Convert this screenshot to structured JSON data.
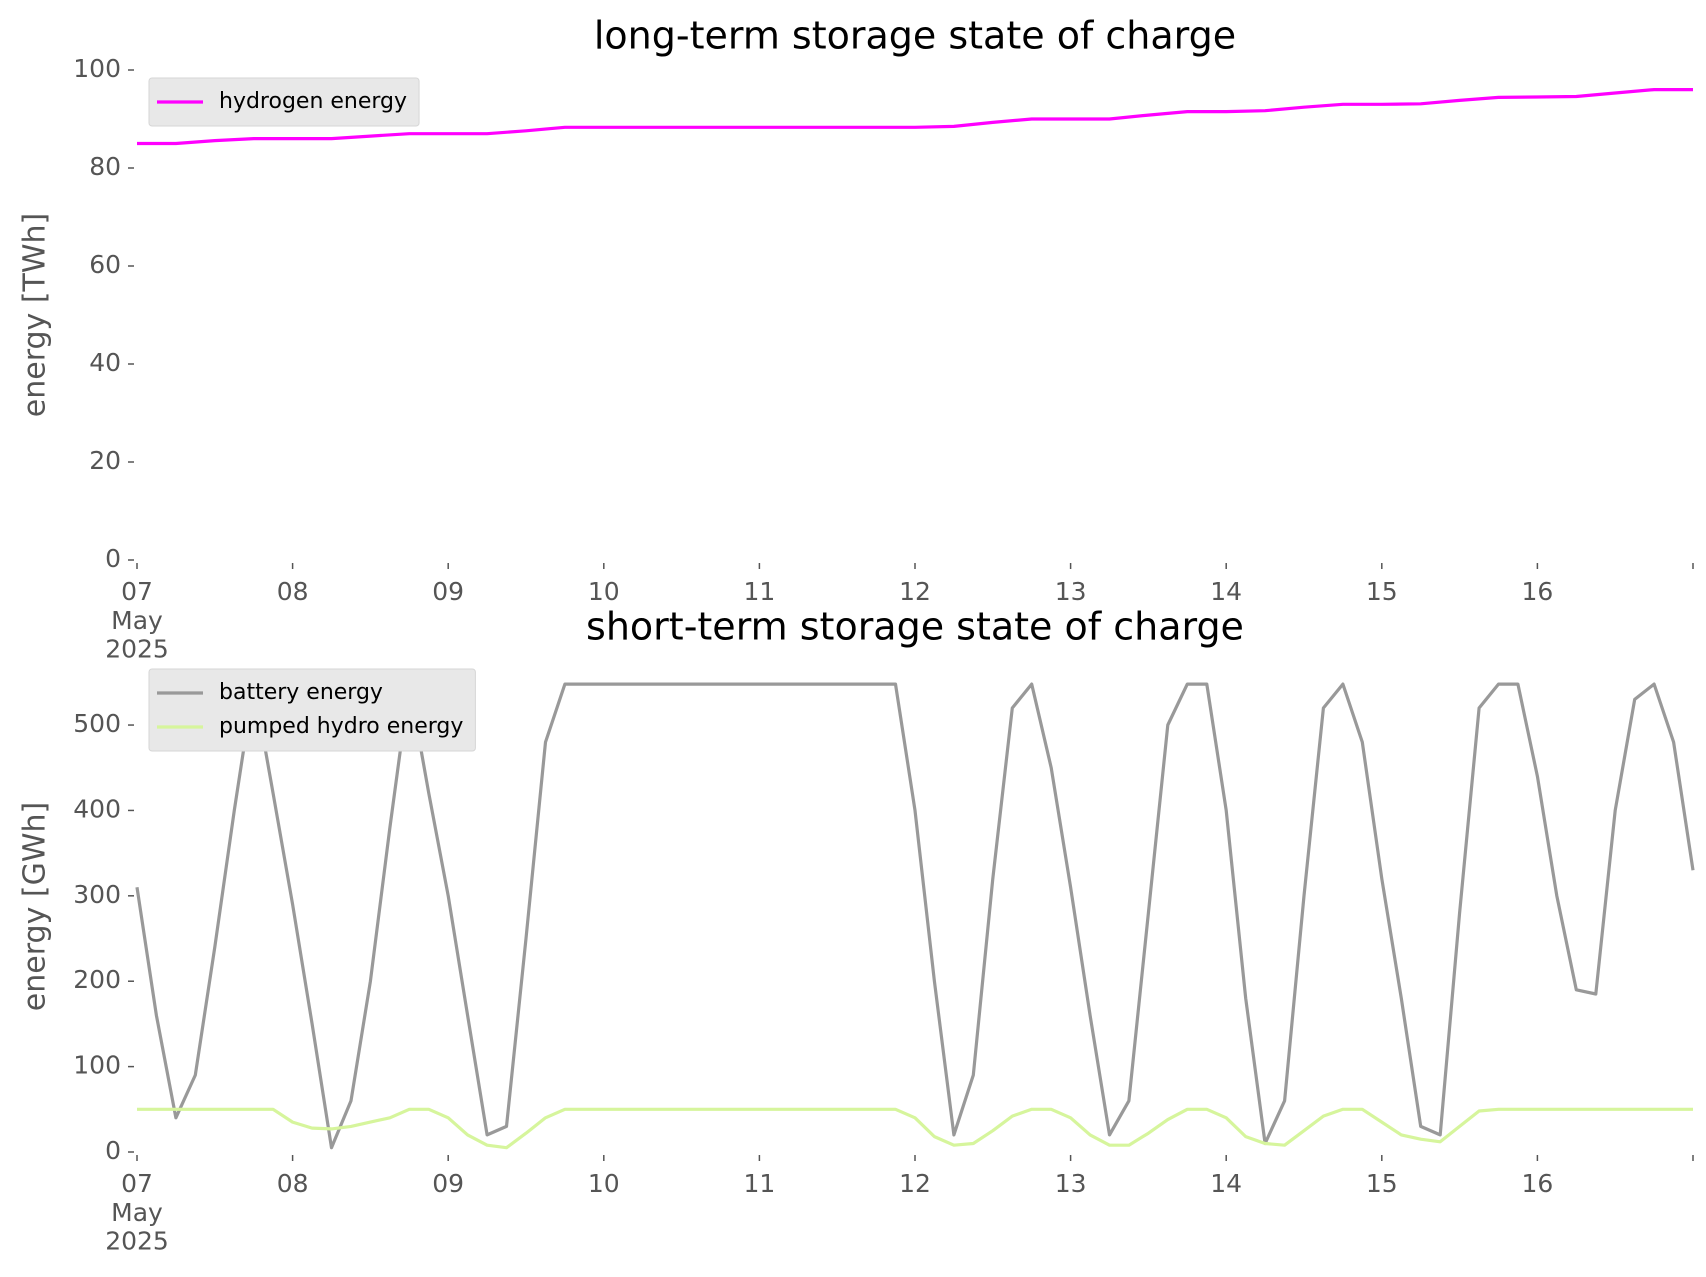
{
  "chart_data": [
    {
      "type": "line",
      "title": "long-term storage state of charge",
      "ylabel": "energy [TWh]",
      "x": [
        7,
        7.25,
        7.5,
        7.75,
        8,
        8.25,
        8.5,
        8.75,
        9,
        9.25,
        9.5,
        9.75,
        10,
        10.25,
        10.5,
        10.75,
        11,
        11.25,
        11.5,
        11.75,
        12,
        12.25,
        12.5,
        12.75,
        13,
        13.25,
        13.5,
        13.75,
        14,
        14.25,
        14.5,
        14.75,
        15,
        15.25,
        15.5,
        15.75,
        16,
        16.25,
        16.5,
        16.75,
        17
      ],
      "series": [
        {
          "name": "hydrogen energy",
          "color": "#ff00ff",
          "values": [
            85,
            85,
            85.6,
            86,
            86,
            86,
            86.5,
            87,
            87,
            87,
            87.6,
            88.3,
            88.3,
            88.3,
            88.3,
            88.3,
            88.3,
            88.3,
            88.3,
            88.3,
            88.3,
            88.5,
            89.3,
            90,
            90,
            90,
            90.8,
            91.5,
            91.5,
            91.7,
            92.4,
            93,
            93,
            93.1,
            93.8,
            94.4,
            94.5,
            94.6,
            95.3,
            96,
            96
          ]
        }
      ],
      "xlim": [
        7,
        17
      ],
      "xticks": [
        {
          "value": 7,
          "label": "07\nMay\n2025"
        },
        {
          "value": 8,
          "label": "08"
        },
        {
          "value": 9,
          "label": "09"
        },
        10,
        11,
        12,
        13,
        14,
        15,
        16,
        {
          "value": 17,
          "label": null
        }
      ],
      "ylim": [
        0,
        100
      ],
      "yticks": [
        0,
        20,
        40,
        60,
        80,
        100
      ],
      "grid": false,
      "legend": "upper left"
    },
    {
      "type": "line",
      "title": "short-term storage state of charge",
      "ylabel": "energy [GWh]",
      "x": [
        7,
        7.125,
        7.25,
        7.375,
        7.5,
        7.625,
        7.75,
        7.875,
        8,
        8.125,
        8.25,
        8.375,
        8.5,
        8.625,
        8.75,
        8.875,
        9,
        9.125,
        9.25,
        9.375,
        9.5,
        9.625,
        9.75,
        9.875,
        10,
        10.125,
        10.25,
        10.375,
        10.5,
        10.625,
        10.75,
        10.875,
        11,
        11.125,
        11.25,
        11.375,
        11.5,
        11.625,
        11.75,
        11.875,
        12,
        12.125,
        12.25,
        12.375,
        12.5,
        12.625,
        12.75,
        12.875,
        13,
        13.125,
        13.25,
        13.375,
        13.5,
        13.625,
        13.75,
        13.875,
        14,
        14.125,
        14.25,
        14.375,
        14.5,
        14.625,
        14.75,
        14.875,
        15,
        15.125,
        15.25,
        15.375,
        15.5,
        15.625,
        15.75,
        15.875,
        16,
        16.125,
        16.25,
        16.375,
        16.5,
        16.625,
        16.75,
        16.875,
        17
      ],
      "series": [
        {
          "name": "battery energy",
          "color": "#999999",
          "values": [
            310,
            160,
            40,
            90,
            240,
            400,
            548,
            420,
            290,
            150,
            5,
            60,
            200,
            380,
            548,
            420,
            300,
            160,
            20,
            30,
            250,
            480,
            548,
            548,
            548,
            548,
            548,
            548,
            548,
            548,
            548,
            548,
            548,
            548,
            548,
            548,
            548,
            548,
            548,
            548,
            400,
            200,
            20,
            90,
            320,
            520,
            548,
            450,
            310,
            160,
            20,
            60,
            280,
            500,
            548,
            548,
            400,
            180,
            10,
            60,
            300,
            520,
            548,
            480,
            320,
            180,
            30,
            20,
            280,
            520,
            548,
            548,
            440,
            300,
            190,
            185,
            400,
            530,
            548,
            480,
            330
          ]
        },
        {
          "name": "pumped hydro energy",
          "color": "#d6f59c",
          "values": [
            50,
            50,
            50,
            50,
            50,
            50,
            50,
            50,
            35,
            28,
            27,
            30,
            35,
            40,
            50,
            50,
            40,
            20,
            8,
            5,
            22,
            40,
            50,
            50,
            50,
            50,
            50,
            50,
            50,
            50,
            50,
            50,
            50,
            50,
            50,
            50,
            50,
            50,
            50,
            50,
            40,
            18,
            8,
            10,
            25,
            42,
            50,
            50,
            40,
            20,
            8,
            8,
            22,
            38,
            50,
            50,
            40,
            18,
            10,
            8,
            25,
            42,
            50,
            50,
            35,
            20,
            15,
            12,
            30,
            48,
            50,
            50,
            50,
            50,
            50,
            50,
            50,
            50,
            50,
            50,
            50
          ]
        }
      ],
      "xlim": [
        7,
        17
      ],
      "xticks": [
        {
          "value": 7,
          "label": "07\nMay\n2025"
        },
        {
          "value": 8,
          "label": "08"
        },
        {
          "value": 9,
          "label": "09"
        },
        10,
        11,
        12,
        13,
        14,
        15,
        16,
        {
          "value": 17,
          "label": null
        }
      ],
      "ylim": [
        0,
        575
      ],
      "yticks": [
        0,
        100,
        200,
        300,
        400,
        500
      ],
      "grid": false,
      "legend": "upper left"
    }
  ]
}
